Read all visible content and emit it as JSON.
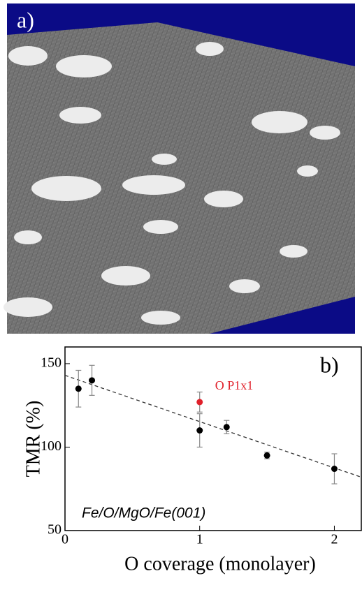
{
  "panel_a": {
    "label": "a)"
  },
  "chart_data": {
    "type": "scatter",
    "panel_label": "b)",
    "annotation": "Fe/O/MgO/Fe(001)",
    "x_label": "O coverage (monolayer)",
    "y_label": "TMR (%)",
    "xlim": [
      0,
      2.2
    ],
    "ylim": [
      50,
      160
    ],
    "xticks": [
      0,
      1,
      2
    ],
    "yticks": [
      50,
      100,
      150
    ],
    "series": [
      {
        "color": "#000000",
        "x": [
          0.1,
          0.2,
          1.0,
          1.2,
          1.5,
          2.0
        ],
        "values": [
          135,
          140,
          110,
          112,
          95,
          87
        ],
        "errors": [
          11,
          9,
          10,
          4,
          2,
          9
        ]
      },
      {
        "name": "O P1x1",
        "color": "#e0202a",
        "x": [
          1.0
        ],
        "values": [
          127
        ],
        "errors": [
          6
        ]
      }
    ],
    "fit": {
      "color": "#333333",
      "x": [
        0,
        2.2
      ],
      "values": [
        143,
        82
      ]
    }
  }
}
